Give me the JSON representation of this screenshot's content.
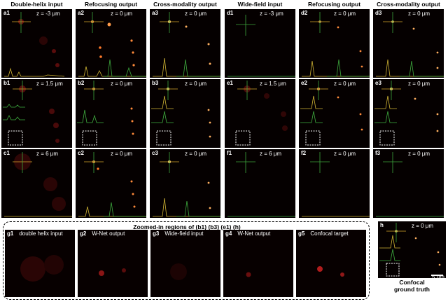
{
  "headers": {
    "double_helix": "Double-helix input",
    "refocusing_a": "Refocusing output",
    "cross_modality_a": "Cross-modality output",
    "wide_field": "Wide-field input",
    "refocusing_d": "Refocusing output",
    "cross_modality_d": "Cross-modality output"
  },
  "panels": {
    "a1": {
      "label": "a1",
      "z": "z = -3 μm"
    },
    "a2": {
      "label": "a2",
      "z": "z = 0 μm"
    },
    "a3": {
      "label": "a3",
      "z": "z = 0 μm"
    },
    "d1": {
      "label": "d1",
      "z": "z = -3 μm"
    },
    "d2": {
      "label": "d2",
      "z": "z = 0 μm"
    },
    "d3": {
      "label": "d3",
      "z": "z = 0 μm"
    },
    "b1": {
      "label": "b1",
      "z": "z = 1.5 μm"
    },
    "b2": {
      "label": "b2",
      "z": "z = 0 μm"
    },
    "b3": {
      "label": "b3",
      "z": "z = 0 μm"
    },
    "e1": {
      "label": "e1",
      "z": "z = 1.5 μm"
    },
    "e2": {
      "label": "e2",
      "z": "z = 0 μm"
    },
    "e3": {
      "label": "e3",
      "z": "z = 0 μm"
    },
    "c1": {
      "label": "c1",
      "z": "z = 6 μm"
    },
    "c2": {
      "label": "c2",
      "z": "z = 0 μm"
    },
    "c3": {
      "label": "c3",
      "z": "z = 0 μm"
    },
    "f1": {
      "label": "f1",
      "z": "z = 6 μm"
    },
    "f2": {
      "label": "f2",
      "z": "z = 0 μm"
    },
    "f3": {
      "label": "f3",
      "z": "z = 0 μm"
    }
  },
  "zoom": {
    "title": "Zoomed-in regions of (b1) (b3) (e1) (h)",
    "items": [
      {
        "label": "g1",
        "text": "double helix input"
      },
      {
        "label": "g2",
        "text": "W-Net output"
      },
      {
        "label": "g3",
        "text": "Wide-field input"
      },
      {
        "label": "g4",
        "text": "W-Net output"
      },
      {
        "label": "g5",
        "text": "Confocal target"
      }
    ]
  },
  "ground_truth": {
    "label": "h",
    "z": "z = 0 μm",
    "caption_line1": "Confocal",
    "caption_line2": "ground truth",
    "scale_bar": "5 μm"
  },
  "colors": {
    "background": "#050000",
    "crosshair_horizontal": "#d8a92c",
    "crosshair_vertical": "#3da63d",
    "profile_yellow": "#d1b534",
    "profile_green": "#3fae3f"
  }
}
